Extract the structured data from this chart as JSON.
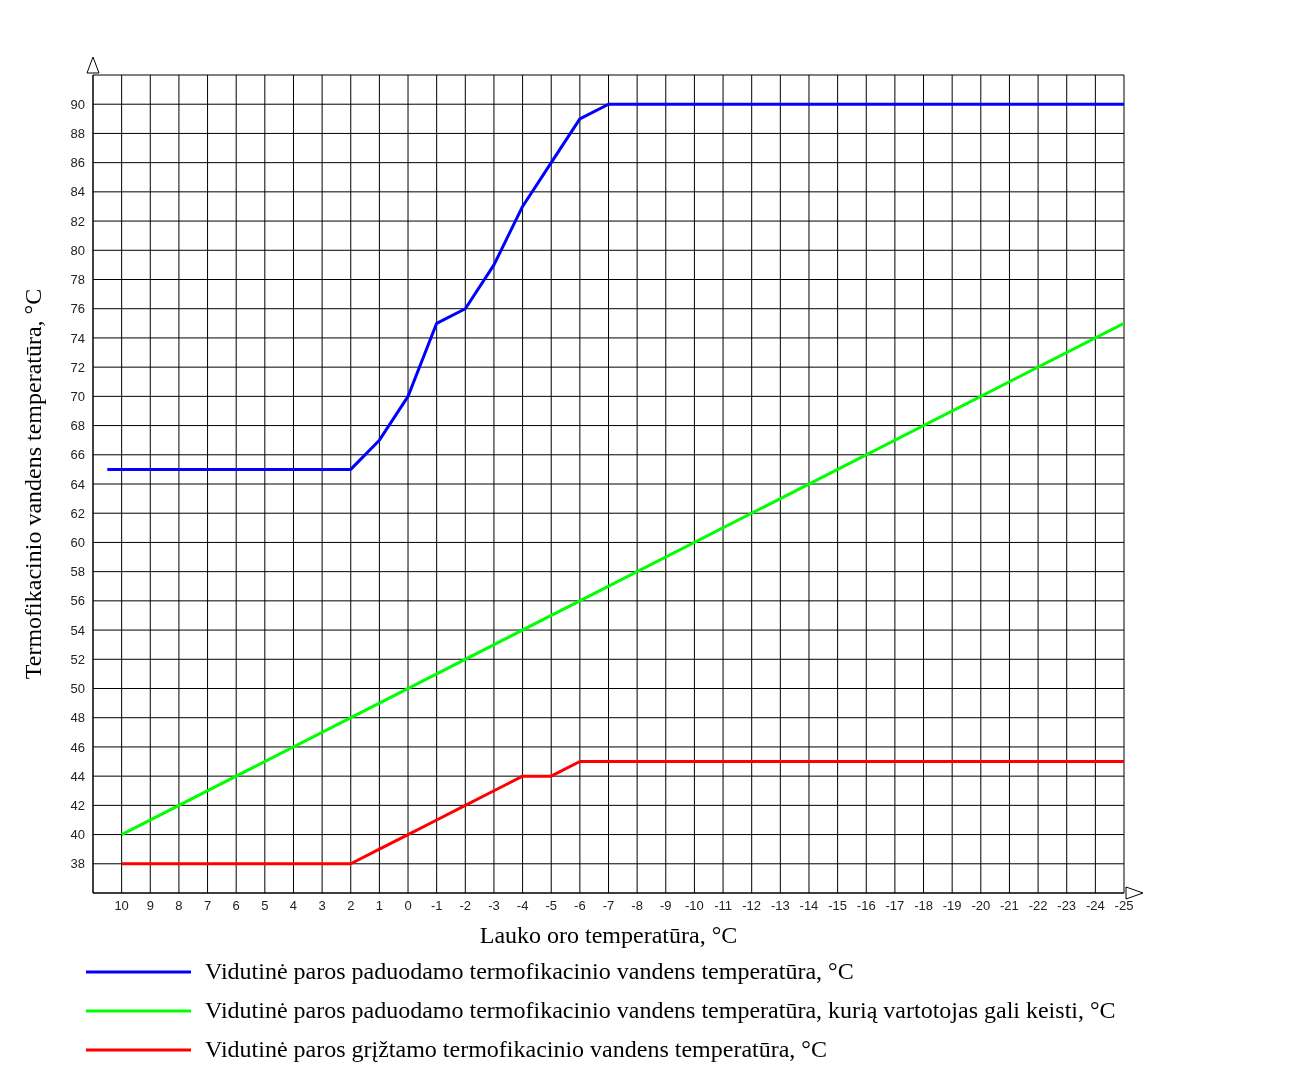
{
  "chart_data": {
    "type": "line",
    "xlabel": "Lauko oro temperatūra, °C",
    "ylabel": "Termofikacinio vandens temperatūra, °C",
    "xlim": [
      11,
      -25
    ],
    "xticks": [
      10,
      9,
      8,
      7,
      6,
      5,
      4,
      3,
      2,
      1,
      0,
      -1,
      -2,
      -3,
      -4,
      -5,
      -6,
      -7,
      -8,
      -9,
      -10,
      -11,
      -12,
      -13,
      -14,
      -15,
      -16,
      -17,
      -18,
      -19,
      -20,
      -21,
      -22,
      -23,
      -24,
      -25
    ],
    "ylim": [
      36,
      92
    ],
    "yticks": [
      38,
      40,
      42,
      44,
      46,
      48,
      50,
      52,
      54,
      56,
      58,
      60,
      62,
      64,
      66,
      68,
      70,
      72,
      74,
      76,
      78,
      80,
      82,
      84,
      86,
      88,
      90,
      {
        "value": 92,
        "label": null
      }
    ],
    "grid": true,
    "legend": "bottom",
    "marker": "none",
    "line_style": "solid",
    "series": [
      {
        "name": "Vidutinė paros paduodamo termofikacinio vandens temperatūra, °C",
        "color": "#0000ff",
        "x": [
          10.5,
          2,
          1,
          0,
          -1,
          -2,
          -3,
          -4,
          -5,
          -6,
          -7,
          -25
        ],
        "values": [
          65,
          65,
          67,
          70,
          75,
          76,
          79,
          83,
          86,
          89,
          90,
          90
        ]
      },
      {
        "name": "Vidutinė paros paduodamo termofikacinio vandens temperatūra, kurią vartotojas gali keisti, °C",
        "color": "#00ff00",
        "x": [
          10,
          -25
        ],
        "values": [
          40,
          75
        ]
      },
      {
        "name": "Vidutinė paros grįžtamo termofikacinio vandens temperatūra, °C",
        "color": "#ff0000",
        "x": [
          10,
          2,
          1,
          0,
          -1,
          -2,
          -3,
          -4,
          -5,
          -6,
          -25
        ],
        "values": [
          38,
          38,
          39,
          40,
          41,
          42,
          43,
          44,
          44,
          45,
          45
        ]
      }
    ]
  }
}
